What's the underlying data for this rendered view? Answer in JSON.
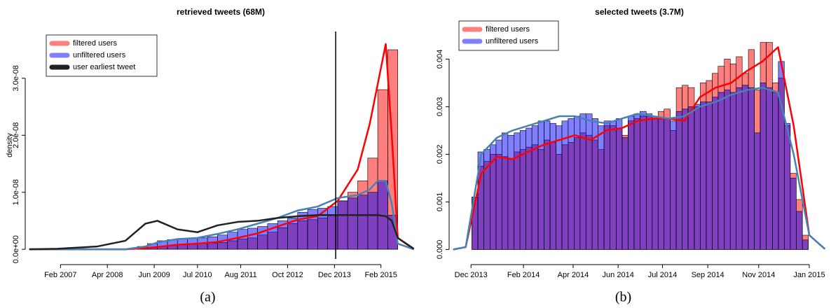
{
  "chart_data": [
    {
      "type": "histogram",
      "title": "retrieved tweets (68M)",
      "ylabel": "density",
      "caption": "(a)",
      "xlim": [
        2006.27,
        2015.89
      ],
      "ylim": [
        -1.7e-09,
        3.82e-08
      ],
      "xticks": [
        {
          "value": 2007.08,
          "label": "Feb 2007"
        },
        {
          "value": 2008.25,
          "label": "Apr 2008"
        },
        {
          "value": 2009.42,
          "label": "Jun 2009"
        },
        {
          "value": 2010.5,
          "label": "Jul 2010"
        },
        {
          "value": 2011.58,
          "label": "Aug 2011"
        },
        {
          "value": 2012.75,
          "label": "Oct 2012"
        },
        {
          "value": 2013.92,
          "label": "Dec 2013"
        },
        {
          "value": 2015.08,
          "label": "Feb 2015"
        }
      ],
      "yticks": [
        {
          "value": 0,
          "label": "0.0e+00"
        },
        {
          "value": 1e-08,
          "label": "1.0e-08"
        },
        {
          "value": 2e-08,
          "label": "2.0e-08"
        },
        {
          "value": 3e-08,
          "label": "3.0e-08"
        }
      ],
      "legend": "top-left",
      "vline": 2013.95,
      "bins": [
        2009.0,
        2009.25,
        2009.5,
        2009.75,
        2010.0,
        2010.25,
        2010.5,
        2010.75,
        2011.0,
        2011.25,
        2011.5,
        2011.75,
        2012.0,
        2012.25,
        2012.5,
        2012.75,
        2013.0,
        2013.25,
        2013.5,
        2013.75,
        2014.0,
        2014.25,
        2014.5,
        2014.75,
        2015.0,
        2015.25,
        2015.5
      ],
      "curve_x": [
        2006.3,
        2007,
        2008,
        2008.7,
        2009.2,
        2009.5,
        2010,
        2010.5,
        2011,
        2011.5,
        2012,
        2012.5,
        2013,
        2013.5,
        2014,
        2014.5,
        2014.8,
        2015,
        2015.2,
        2015.35,
        2015.5,
        2015.9
      ],
      "series": [
        {
          "name": "filtered users",
          "color": "#ff0000",
          "curve_color": "#ff0000",
          "values": [
            2e-10,
            3e-10,
            5e-10,
            7e-10,
            8e-10,
            9e-10,
            1e-09,
            1.1e-09,
            1.2e-09,
            1.5e-09,
            1.8e-09,
            2e-09,
            2.5e-09,
            3e-09,
            3.8e-09,
            4.5e-09,
            5e-09,
            5.2e-09,
            5.5e-09,
            6e-09,
            8.5e-09,
            1e-08,
            1.2e-08,
            1.6e-08,
            2.8e-08,
            3.5e-08
          ],
          "curve": [
            0,
            0,
            0,
            0,
            2e-10,
            4e-10,
            8e-10,
            1e-09,
            1.3e-09,
            2e-09,
            2.8e-09,
            4e-09,
            5.2e-09,
            5.8e-09,
            8.5e-09,
            1.4e-08,
            2.2e-08,
            2.9e-08,
            3.6e-08,
            2e-08,
            2e-09,
            0
          ]
        },
        {
          "name": "unfiltered users",
          "color": "#0000ff",
          "curve_color": "#4682b4",
          "values": [
            5e-10,
            1e-09,
            1.5e-09,
            1.7e-09,
            1.8e-09,
            1.9e-09,
            2e-09,
            2.2e-09,
            2.5e-09,
            3e-09,
            3.5e-09,
            3.7e-09,
            4e-09,
            4.5e-09,
            5e-09,
            5.5e-09,
            6.5e-09,
            7e-09,
            7.2e-09,
            7.5e-09,
            8.5e-09,
            9e-09,
            9.5e-09,
            1e-08,
            1.2e-08,
            6e-09
          ],
          "curve": [
            0,
            0,
            0,
            0,
            5e-10,
            1.2e-09,
            1.8e-09,
            2e-09,
            2.7e-09,
            3.5e-09,
            4.5e-09,
            5.5e-09,
            6.8e-09,
            7.5e-09,
            9e-09,
            9.5e-09,
            1.05e-08,
            1.2e-08,
            1.2e-08,
            8e-09,
            1e-09,
            0
          ]
        },
        {
          "name": "user earliest tweet",
          "color": "#222222",
          "curve_color": "#222222",
          "curve": [
            0,
            1e-10,
            5e-10,
            1.5e-09,
            4.5e-09,
            5e-09,
            3.5e-09,
            3e-09,
            4.2e-09,
            4.8e-09,
            5e-09,
            5.5e-09,
            5.8e-09,
            6e-09,
            6e-09,
            6e-09,
            6e-09,
            6e-09,
            5.8e-09,
            5e-09,
            2e-09,
            1e-10
          ]
        }
      ]
    },
    {
      "type": "histogram",
      "title": "selected tweets (3.7M)",
      "caption": "(b)",
      "xlim": [
        2013.856,
        2015.056
      ],
      "ylim": [
        -0.0002,
        0.0048
      ],
      "xticks": [
        {
          "value": 2013.917,
          "label": "Dec 2013"
        },
        {
          "value": 2014.085,
          "label": "Feb 2014"
        },
        {
          "value": 2014.244,
          "label": "Apr 2014"
        },
        {
          "value": 2014.388,
          "label": "Jun 2014"
        },
        {
          "value": 2014.53,
          "label": "Jul 2014"
        },
        {
          "value": 2014.675,
          "label": "Sep 2014"
        },
        {
          "value": 2014.838,
          "label": "Nov 2014"
        },
        {
          "value": 2015.0,
          "label": "Jan 2015"
        }
      ],
      "yticks": [
        {
          "value": 0,
          "label": "0.000"
        },
        0.001,
        0.002,
        0.003,
        0.004
      ],
      "legend": "top-left",
      "bins": [
        2013.92,
        2013.939,
        2013.958,
        2013.978,
        2013.997,
        2014.016,
        2014.035,
        2014.055,
        2014.074,
        2014.093,
        2014.112,
        2014.132,
        2014.151,
        2014.17,
        2014.189,
        2014.208,
        2014.228,
        2014.247,
        2014.266,
        2014.285,
        2014.305,
        2014.324,
        2014.343,
        2014.362,
        2014.382,
        2014.401,
        2014.42,
        2014.439,
        2014.458,
        2014.478,
        2014.497,
        2014.516,
        2014.535,
        2014.555,
        2014.574,
        2014.593,
        2014.612,
        2014.632,
        2014.651,
        2014.67,
        2014.689,
        2014.708,
        2014.728,
        2014.747,
        2014.766,
        2014.785,
        2014.805,
        2014.824,
        2014.843,
        2014.862,
        2014.882,
        2014.901,
        2014.92,
        2014.939,
        2014.958,
        2014.978,
        2014.997
      ],
      "curve_x": [
        2013.86,
        2013.9,
        2013.95,
        2014.0,
        2014.05,
        2014.1,
        2014.15,
        2014.2,
        2014.25,
        2014.3,
        2014.35,
        2014.4,
        2014.45,
        2014.5,
        2014.55,
        2014.6,
        2014.65,
        2014.7,
        2014.75,
        2014.8,
        2014.85,
        2014.9,
        2014.95,
        2015.0,
        2015.05
      ],
      "series": [
        {
          "name": "filtered users",
          "color": "#ff0000",
          "curve_color": "#ff0000",
          "values": [
            0.0011,
            0.00175,
            0.00185,
            0.002,
            0.002,
            0.00195,
            0.0019,
            0.00205,
            0.0021,
            0.00215,
            0.0022,
            0.0021,
            0.0023,
            0.00225,
            0.002,
            0.0022,
            0.00225,
            0.00235,
            0.00245,
            0.0024,
            0.0023,
            0.0021,
            0.0026,
            0.0026,
            0.00255,
            0.0024,
            0.0027,
            0.00275,
            0.0028,
            0.0028,
            0.00275,
            0.0029,
            0.00295,
            0.0025,
            0.0034,
            0.00345,
            0.0034,
            0.003,
            0.0035,
            0.00355,
            0.0037,
            0.00385,
            0.004,
            0.0039,
            0.00405,
            0.0037,
            0.0042,
            0.00335,
            0.00435,
            0.00435,
            0.0035,
            0.0036,
            0.0026,
            0.0016,
            0.00105,
            0.0003
          ],
          "curve": [
            0,
            5e-05,
            0.0016,
            0.00195,
            0.0019,
            0.00205,
            0.0022,
            0.0023,
            0.0024,
            0.0023,
            0.0025,
            0.00255,
            0.0027,
            0.00275,
            0.00275,
            0.0027,
            0.0032,
            0.0034,
            0.0035,
            0.00375,
            0.00395,
            0.00425,
            0.0026,
            0.0003,
            1e-05
          ]
        },
        {
          "name": "unfiltered users",
          "color": "#0000ff",
          "curve_color": "#4682b4",
          "values": [
            0.0011,
            0.00205,
            0.0021,
            0.0022,
            0.0023,
            0.00245,
            0.0024,
            0.00245,
            0.0025,
            0.00255,
            0.0026,
            0.0027,
            0.0027,
            0.00265,
            0.0026,
            0.0027,
            0.00275,
            0.0028,
            0.00285,
            0.00285,
            0.00275,
            0.0026,
            0.0027,
            0.0027,
            0.00275,
            0.00235,
            0.0028,
            0.00285,
            0.0029,
            0.00285,
            0.0028,
            0.00275,
            0.00275,
            0.0027,
            0.0029,
            0.00295,
            0.003,
            0.00305,
            0.0031,
            0.0031,
            0.0032,
            0.0033,
            0.00335,
            0.0033,
            0.0034,
            0.00345,
            0.0034,
            0.00245,
            0.0035,
            0.0034,
            0.0033,
            0.00395,
            0.00265,
            0.0015,
            0.0008,
            0.0002
          ],
          "curve": [
            0,
            5e-05,
            0.002,
            0.00235,
            0.0025,
            0.0026,
            0.0027,
            0.0028,
            0.0028,
            0.0027,
            0.00265,
            0.00275,
            0.00285,
            0.0028,
            0.00275,
            0.0028,
            0.003,
            0.0031,
            0.00325,
            0.00335,
            0.0034,
            0.0033,
            0.002,
            0.0003,
            1e-05
          ]
        }
      ]
    }
  ]
}
